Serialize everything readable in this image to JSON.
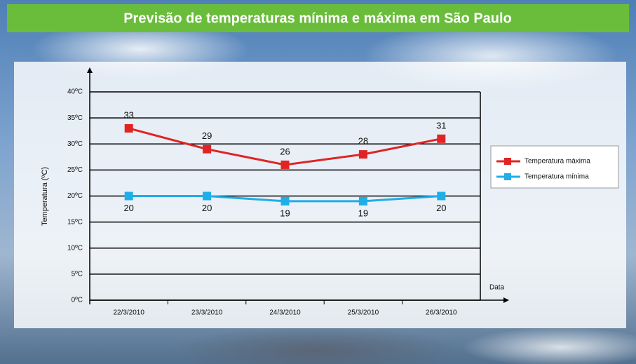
{
  "chart_data": {
    "type": "line",
    "title": "Previsão de temperaturas mínima e máxima em São Paulo",
    "y_label": "Temperatura (ºC)",
    "x_label": "Data",
    "categories": [
      "22/3/2010",
      "23/3/2010",
      "24/3/2010",
      "25/3/2010",
      "26/3/2010"
    ],
    "series": [
      {
        "name": "Temperatura máxima",
        "color": "#e02424",
        "values": [
          33,
          29,
          26,
          28,
          31
        ]
      },
      {
        "name": "Temperatura mínima",
        "color": "#1eaee8",
        "values": [
          20,
          20,
          19,
          19,
          20
        ]
      }
    ],
    "ylim": [
      0,
      40
    ],
    "yticks": [
      {
        "value": 0,
        "label": "0ºC"
      },
      {
        "value": 5,
        "label": "5ºC"
      },
      {
        "value": 10,
        "label": "10ºC"
      },
      {
        "value": 15,
        "label": "15ºC"
      },
      {
        "value": 20,
        "label": "20ºC"
      },
      {
        "value": 25,
        "label": "25ºC"
      },
      {
        "value": 30,
        "label": "30ºC"
      },
      {
        "value": 35,
        "label": "35ºC"
      },
      {
        "value": 40,
        "label": "40ºC"
      }
    ],
    "grid": true,
    "legend": "right"
  }
}
